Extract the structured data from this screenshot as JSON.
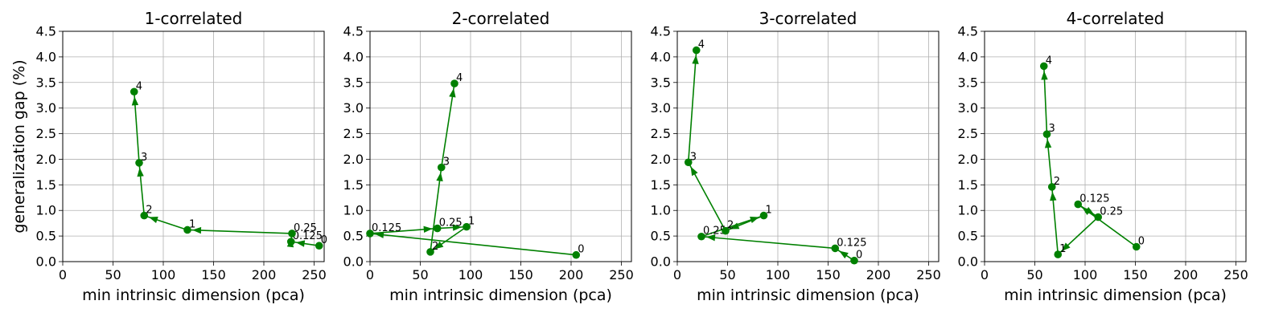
{
  "chart_data": [
    {
      "type": "line",
      "title": "1-correlated",
      "xlabel": "min intrinsic dimension (pca)",
      "ylabel": "generalization gap (%)",
      "xlim": [
        0,
        260
      ],
      "ylim": [
        0,
        4.5
      ],
      "xticks": [
        "0",
        "50",
        "100",
        "150",
        "200",
        "250"
      ],
      "yticks": [
        "0.0",
        "0.5",
        "1.0",
        "1.5",
        "2.0",
        "2.5",
        "3.0",
        "3.5",
        "4.0",
        "4.5"
      ],
      "grid": true,
      "color": "#008000",
      "points": [
        {
          "label": "0",
          "x": 255,
          "y": 0.31
        },
        {
          "label": "0.125",
          "x": 227,
          "y": 0.39
        },
        {
          "label": "0.25",
          "x": 228,
          "y": 0.55
        },
        {
          "label": "1",
          "x": 124,
          "y": 0.62
        },
        {
          "label": "2",
          "x": 81,
          "y": 0.9
        },
        {
          "label": "3",
          "x": 76,
          "y": 1.93
        },
        {
          "label": "4",
          "x": 71,
          "y": 3.32
        }
      ]
    },
    {
      "type": "line",
      "title": "2-correlated",
      "xlabel": "min intrinsic dimension (pca)",
      "ylabel": "",
      "xlim": [
        0,
        260
      ],
      "ylim": [
        0,
        4.5
      ],
      "xticks": [
        "0",
        "50",
        "100",
        "150",
        "200",
        "250"
      ],
      "yticks": [
        "0.0",
        "0.5",
        "1.0",
        "1.5",
        "2.0",
        "2.5",
        "3.0",
        "3.5",
        "4.0",
        "4.5"
      ],
      "grid": true,
      "color": "#008000",
      "points": [
        {
          "label": "0",
          "x": 205,
          "y": 0.13
        },
        {
          "label": "0.125",
          "x": 0,
          "y": 0.55
        },
        {
          "label": "0.25",
          "x": 67,
          "y": 0.65
        },
        {
          "label": "1",
          "x": 96,
          "y": 0.68
        },
        {
          "label": "2",
          "x": 60,
          "y": 0.19
        },
        {
          "label": "3",
          "x": 71,
          "y": 1.84
        },
        {
          "label": "4",
          "x": 84,
          "y": 3.48
        }
      ]
    },
    {
      "type": "line",
      "title": "3-correlated",
      "xlabel": "min intrinsic dimension (pca)",
      "ylabel": "",
      "xlim": [
        0,
        260
      ],
      "ylim": [
        0,
        4.5
      ],
      "xticks": [
        "0",
        "50",
        "100",
        "150",
        "200",
        "250"
      ],
      "yticks": [
        "0.0",
        "0.5",
        "1.0",
        "1.5",
        "2.0",
        "2.5",
        "3.0",
        "3.5",
        "4.0",
        "4.5"
      ],
      "grid": true,
      "color": "#008000",
      "points": [
        {
          "label": "0",
          "x": 176,
          "y": 0.02
        },
        {
          "label": "0.125",
          "x": 157,
          "y": 0.26
        },
        {
          "label": "0.25",
          "x": 24,
          "y": 0.49
        },
        {
          "label": "1",
          "x": 86,
          "y": 0.9
        },
        {
          "label": "2",
          "x": 48,
          "y": 0.6
        },
        {
          "label": "3",
          "x": 11,
          "y": 1.94
        },
        {
          "label": "4",
          "x": 19,
          "y": 4.13
        }
      ]
    },
    {
      "type": "line",
      "title": "4-correlated",
      "xlabel": "min intrinsic dimension (pca)",
      "ylabel": "",
      "xlim": [
        0,
        260
      ],
      "ylim": [
        0,
        4.5
      ],
      "xticks": [
        "0",
        "50",
        "100",
        "150",
        "200",
        "250"
      ],
      "yticks": [
        "0.0",
        "0.5",
        "1.0",
        "1.5",
        "2.0",
        "2.5",
        "3.0",
        "3.5",
        "4.0",
        "4.5"
      ],
      "grid": true,
      "color": "#008000",
      "points": [
        {
          "label": "0",
          "x": 151,
          "y": 0.29
        },
        {
          "label": "0.125",
          "x": 93,
          "y": 1.12
        },
        {
          "label": "0.25",
          "x": 113,
          "y": 0.87
        },
        {
          "label": "1",
          "x": 73,
          "y": 0.14
        },
        {
          "label": "2",
          "x": 67,
          "y": 1.46
        },
        {
          "label": "3",
          "x": 62,
          "y": 2.49
        },
        {
          "label": "4",
          "x": 59,
          "y": 3.82
        }
      ]
    }
  ]
}
